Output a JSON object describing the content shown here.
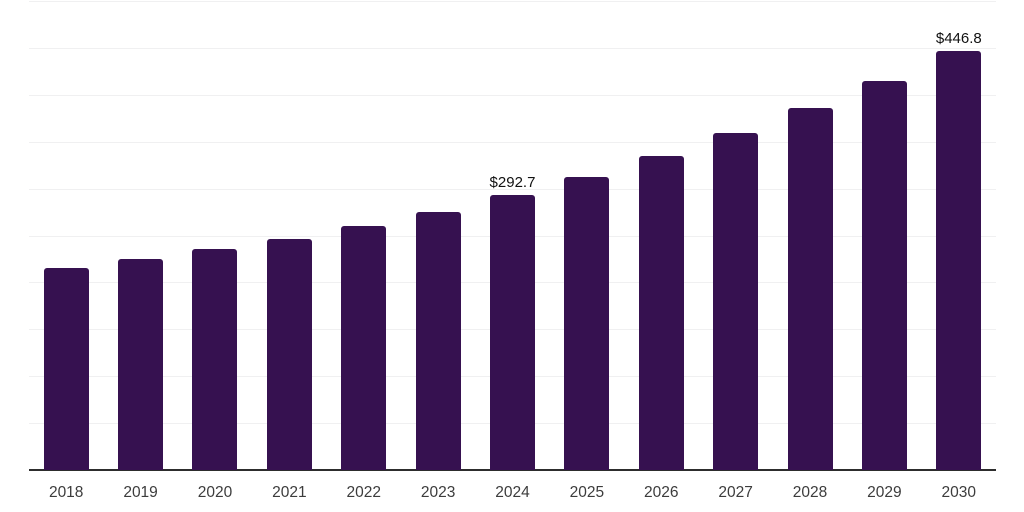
{
  "chart_data": {
    "type": "bar",
    "title": "",
    "xlabel": "",
    "ylabel": "",
    "categories": [
      "2018",
      "2019",
      "2020",
      "2021",
      "2022",
      "2023",
      "2024",
      "2025",
      "2026",
      "2027",
      "2028",
      "2029",
      "2030"
    ],
    "values": [
      215.0,
      224.6,
      235.3,
      245.9,
      260.0,
      275.4,
      292.7,
      312.0,
      335.0,
      359.0,
      385.6,
      414.4,
      446.8
    ],
    "value_labels": [
      "",
      "",
      "",
      "",
      "",
      "",
      "$292.7",
      "",
      "",
      "",
      "",
      "",
      "$446.8"
    ],
    "ylim": [
      0,
      500
    ],
    "gridline_step": 50,
    "grid": true,
    "legend": false,
    "y_tick_labels_visible": false,
    "colors": {
      "bar": "#361150",
      "gridline": "#f0f0f1",
      "axis": "#2d2d2d",
      "tick_label": "#3c3c3c",
      "value_label": "#111111",
      "background": "#ffffff"
    }
  }
}
